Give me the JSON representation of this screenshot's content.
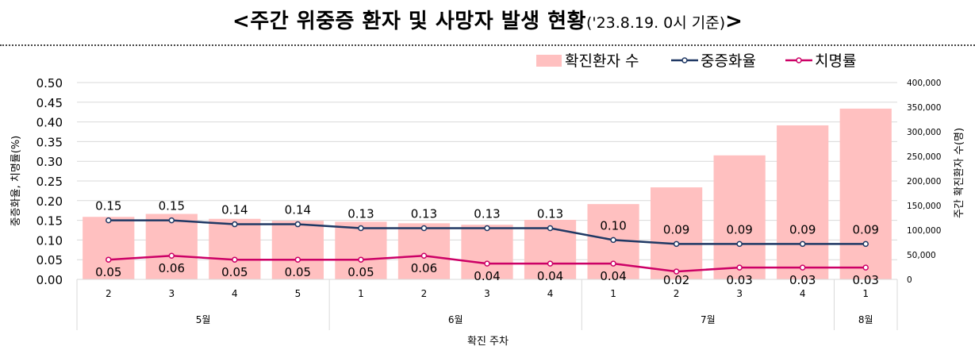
{
  "title": {
    "main": "<주간 위중증 환자 및 사망자 발생 현황",
    "sub": "('23.8.19. 0시 기준)",
    "close": ">"
  },
  "chart_data": {
    "type": "bar",
    "categories": [
      "2",
      "3",
      "4",
      "5",
      "1",
      "2",
      "3",
      "4",
      "1",
      "2",
      "3",
      "4",
      "1"
    ],
    "groups": [
      {
        "label": "5월",
        "count": 4
      },
      {
        "label": "6월",
        "count": 4
      },
      {
        "label": "7월",
        "count": 4
      },
      {
        "label": "8월",
        "count": 1
      }
    ],
    "xlabel": "확진 주차",
    "ylabel_left": "중증화율, 치명률(%)",
    "ylabel_right": "주간 확진환자 수(명)",
    "ylim_left": [
      0,
      0.5
    ],
    "yticks_left": [
      "0.00",
      "0.05",
      "0.10",
      "0.15",
      "0.20",
      "0.25",
      "0.30",
      "0.35",
      "0.40",
      "0.45",
      "0.50"
    ],
    "ylim_right": [
      0,
      400000
    ],
    "yticks_right": [
      "0",
      "50,000",
      "100,000",
      "150,000",
      "200,000",
      "250,000",
      "300,000",
      "350,000",
      "400,000"
    ],
    "legend_position": "top-right",
    "grid": true,
    "series": [
      {
        "name": "확진환자 수",
        "type": "bar",
        "axis": "right",
        "color": "#ffc0c0",
        "values": [
          127000,
          133000,
          123000,
          119000,
          117000,
          114000,
          111000,
          121000,
          153000,
          187000,
          252000,
          313000,
          347000
        ]
      },
      {
        "name": "중증화율",
        "type": "line",
        "axis": "left",
        "color": "#1f3864",
        "values": [
          0.15,
          0.15,
          0.14,
          0.14,
          0.13,
          0.13,
          0.13,
          0.13,
          0.1,
          0.09,
          0.09,
          0.09,
          0.09
        ],
        "labels": [
          "0.15",
          "0.15",
          "0.14",
          "0.14",
          "0.13",
          "0.13",
          "0.13",
          "0.13",
          "0.10",
          "0.09",
          "0.09",
          "0.09",
          "0.09"
        ]
      },
      {
        "name": "치명률",
        "type": "line",
        "axis": "left",
        "color": "#cc0066",
        "values": [
          0.05,
          0.06,
          0.05,
          0.05,
          0.05,
          0.06,
          0.04,
          0.04,
          0.04,
          0.02,
          0.03,
          0.03,
          0.03
        ],
        "labels": [
          "0.05",
          "0.06",
          "0.05",
          "0.05",
          "0.05",
          "0.06",
          "0.04",
          "0.04",
          "0.04",
          "0.02",
          "0.03",
          "0.03",
          "0.03"
        ]
      }
    ]
  }
}
